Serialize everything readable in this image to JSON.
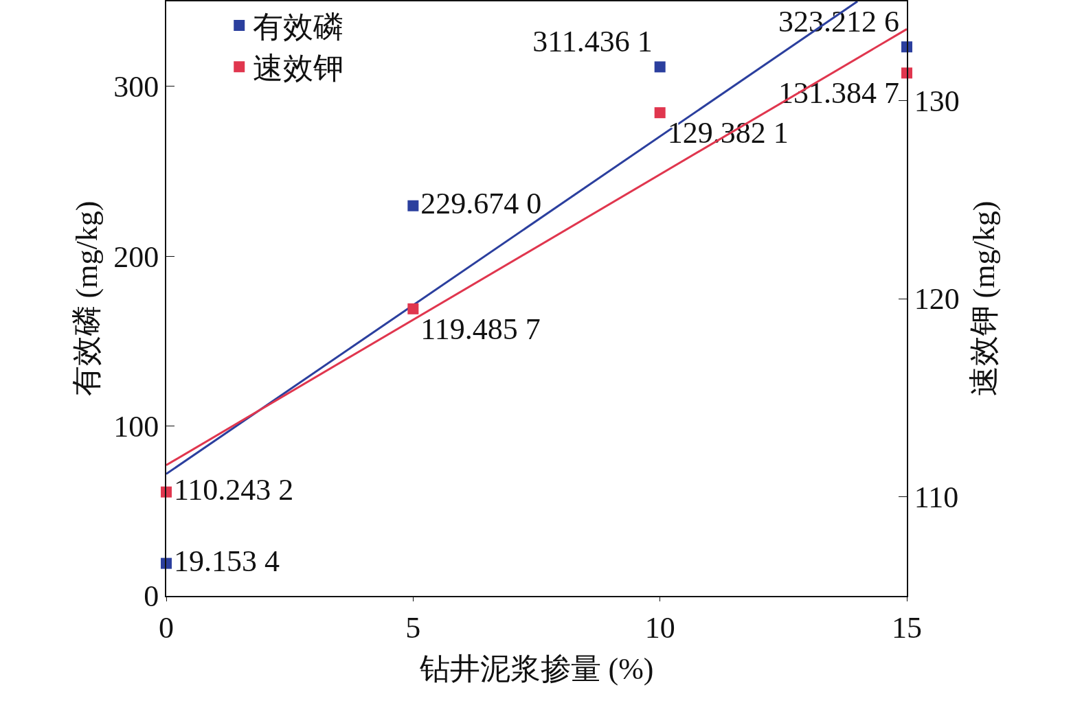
{
  "chart_data": {
    "type": "scatter",
    "xlabel": "钻井泥浆掺量 (%)",
    "ylabel": "有效磷 (mg/kg)",
    "y2label": "速效钾 (mg/kg)",
    "x": [
      0,
      5,
      10,
      15
    ],
    "series": [
      {
        "name": "有效磷",
        "color": "#2b3f9e",
        "values": [
          19.1534,
          229.674,
          311.4361,
          323.2126
        ],
        "value_labels": [
          "19.153 4",
          "229.674 0",
          "311.436 1",
          "323.212 6"
        ]
      },
      {
        "name": "速效钾",
        "color": "#e0364e",
        "axis": "y2",
        "values": [
          110.2432,
          119.4857,
          129.3821,
          131.3847
        ],
        "value_labels": [
          "110.243 2",
          "119.485 7",
          "129.382 1",
          "131.384 7"
        ]
      },
      {
        "type": "line",
        "marker": "none",
        "color": "#2b3f9e",
        "x": [
          0,
          14
        ],
        "values": [
          71.8,
          350
        ]
      },
      {
        "type": "line",
        "marker": "none",
        "color": "#e0364e",
        "axis": "y2",
        "x": [
          0,
          15
        ],
        "values": [
          111.6,
          133.6
        ]
      }
    ],
    "xlim": [
      0,
      15
    ],
    "xticks": [
      0,
      5,
      10,
      15
    ],
    "ylim": [
      0,
      350
    ],
    "yticks": [
      0,
      100,
      200,
      300
    ],
    "y2lim": [
      105,
      135
    ],
    "y2ticks": [
      110,
      120,
      130
    ],
    "marker": "square",
    "grid": false,
    "legend": "top left"
  }
}
